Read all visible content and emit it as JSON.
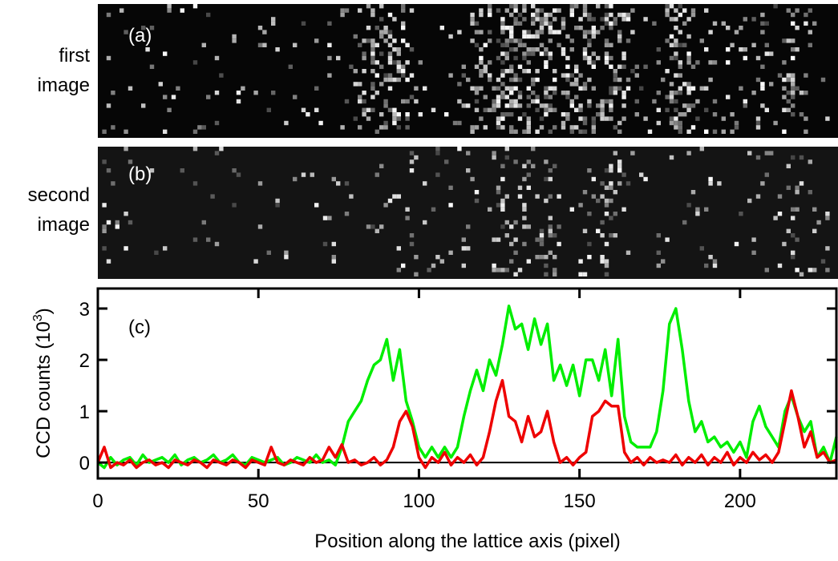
{
  "chart_data": {
    "type": "line",
    "panels": [
      {
        "tag": "(a)",
        "side_label": [
          "first",
          "image"
        ]
      },
      {
        "tag": "(b)",
        "side_label": [
          "second",
          "image"
        ]
      }
    ],
    "tag": "(c)",
    "xlabel": "Position along the lattice axis (pixel)",
    "ylabel": "CCD counts (10",
    "ylabel_exponent": "3",
    "ylabel_suffix": ")",
    "xlim": [
      0,
      230
    ],
    "ylim": [
      -0.31,
      3.39
    ],
    "xticks": [
      0,
      50,
      100,
      150,
      200
    ],
    "yticks": [
      0,
      1,
      2,
      3
    ],
    "zero_line": true,
    "x": [
      0,
      2,
      4,
      6,
      8,
      10,
      12,
      14,
      16,
      18,
      20,
      22,
      24,
      26,
      28,
      30,
      32,
      34,
      36,
      38,
      40,
      42,
      44,
      46,
      48,
      50,
      52,
      54,
      56,
      58,
      60,
      62,
      64,
      66,
      68,
      70,
      72,
      74,
      76,
      78,
      80,
      82,
      84,
      86,
      88,
      90,
      92,
      94,
      96,
      98,
      100,
      102,
      104,
      106,
      108,
      110,
      112,
      114,
      116,
      118,
      120,
      122,
      124,
      126,
      128,
      130,
      132,
      134,
      136,
      138,
      140,
      142,
      144,
      146,
      148,
      150,
      152,
      154,
      156,
      158,
      160,
      162,
      164,
      166,
      168,
      170,
      172,
      174,
      176,
      178,
      180,
      182,
      184,
      186,
      188,
      190,
      192,
      194,
      196,
      198,
      200,
      202,
      204,
      206,
      208,
      210,
      212,
      214,
      216,
      218,
      220,
      222,
      224,
      226,
      228,
      230
    ],
    "series": [
      {
        "color": "#00ee00",
        "values": [
          0,
          -0.1,
          0.1,
          -0.05,
          0.05,
          0.1,
          -0.05,
          0.15,
          0,
          0.05,
          0.1,
          0.0,
          0.15,
          -0.05,
          0.05,
          0.1,
          0.0,
          0.05,
          0.15,
          0.0,
          0.05,
          0.15,
          0.0,
          -0.05,
          0.1,
          0.05,
          0.0,
          0.05,
          0.1,
          -0.05,
          0.0,
          0.1,
          0.05,
          0.0,
          0.15,
          0.0,
          0.05,
          -0.05,
          0.3,
          0.8,
          1.0,
          1.2,
          1.6,
          1.9,
          2.0,
          2.4,
          1.6,
          2.2,
          1.2,
          0.8,
          0.3,
          0.1,
          0.3,
          0.1,
          0.3,
          0.1,
          0.3,
          0.9,
          1.4,
          1.8,
          1.4,
          2.0,
          1.7,
          2.3,
          3.05,
          2.6,
          2.7,
          2.2,
          2.8,
          2.3,
          2.7,
          1.6,
          1.9,
          1.5,
          1.9,
          1.3,
          2.0,
          2.0,
          1.6,
          2.2,
          1.3,
          2.4,
          0.9,
          0.4,
          0.3,
          0.3,
          0.3,
          0.6,
          1.4,
          2.7,
          3.0,
          2.2,
          1.2,
          0.6,
          0.8,
          0.4,
          0.5,
          0.3,
          0.4,
          0.2,
          0.4,
          0.1,
          0.8,
          1.1,
          0.7,
          0.5,
          0.3,
          1.0,
          1.3,
          0.9,
          0.6,
          0.8,
          0.1,
          0.3,
          0.0,
          0.5
        ]
      },
      {
        "color": "#ee0000",
        "values": [
          0,
          0.3,
          -0.1,
          0.0,
          -0.05,
          0.05,
          -0.1,
          0.0,
          0.05,
          -0.05,
          0.0,
          -0.1,
          0.05,
          0.0,
          -0.05,
          0.05,
          0.0,
          -0.1,
          0.05,
          0.0,
          -0.05,
          0.05,
          0.0,
          -0.1,
          0.05,
          0.0,
          -0.05,
          0.3,
          0.0,
          -0.05,
          0.05,
          0.0,
          -0.05,
          0.1,
          0.0,
          0.05,
          0.3,
          0.1,
          0.35,
          0.0,
          0.05,
          -0.05,
          0.0,
          0.1,
          -0.05,
          0.05,
          0.3,
          0.8,
          1.0,
          0.7,
          0.1,
          -0.1,
          0.1,
          0.0,
          0.2,
          -0.05,
          0.1,
          0.0,
          0.15,
          -0.05,
          0.1,
          0.6,
          1.2,
          1.6,
          0.9,
          0.8,
          0.4,
          0.9,
          0.5,
          0.6,
          1.0,
          0.4,
          0.0,
          0.1,
          -0.05,
          0.1,
          0.2,
          0.9,
          1.0,
          1.2,
          1.1,
          1.1,
          0.2,
          0.0,
          0.1,
          -0.05,
          0.1,
          0.0,
          0.05,
          0.0,
          0.15,
          -0.05,
          0.1,
          0.0,
          0.15,
          -0.05,
          0.1,
          0.0,
          0.2,
          -0.05,
          0.1,
          0.0,
          0.2,
          0.05,
          0.15,
          0.0,
          0.2,
          0.8,
          1.4,
          0.9,
          0.3,
          0.6,
          0.1,
          0.2,
          0.0,
          0.05
        ]
      }
    ]
  }
}
